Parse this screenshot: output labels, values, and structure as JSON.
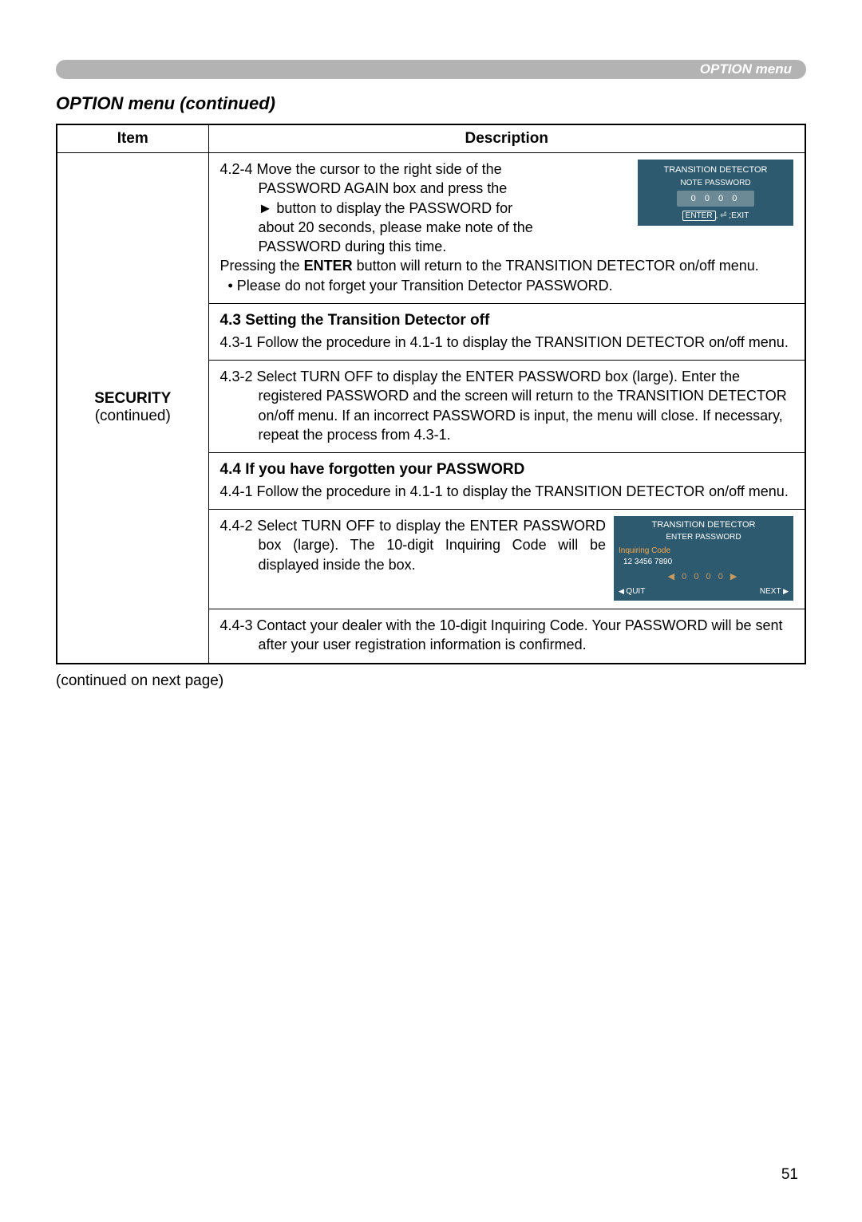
{
  "header_label": "OPTION menu",
  "page_title": "OPTION menu (continued)",
  "column_item": "Item",
  "column_desc": "Description",
  "item_name": "SECURITY",
  "item_sub": "(continued)",
  "s1": {
    "line1a": "4.2-4 Move the cursor to the right side of the",
    "line1b": "PASSWORD AGAIN box and press the",
    "line1c_pre": "► button to display the PASSWORD for",
    "line1d": "about 20 seconds, please make note of the",
    "line1e": "PASSWORD during this time.",
    "line2a": "Pressing the ",
    "line2b": "ENTER",
    "line2c": " button will return to the TRANSITION DETECTOR on/off menu.",
    "line3": "• Please do not forget your Transition Detector PASSWORD."
  },
  "s2": {
    "title": "4.3 Setting the Transition Detector off",
    "p1": "4.3-1 Follow the procedure in 4.1-1 to display the TRANSITION DETECTOR on/off menu."
  },
  "s3": {
    "p1": "4.3-2 Select TURN OFF to display the ENTER PASSWORD box (large). Enter the registered PASSWORD and the screen will return to the TRANSITION DETECTOR on/off menu. If an incorrect PASSWORD is input, the menu will close. If necessary, repeat the process from 4.3-1."
  },
  "s4": {
    "title": "4.4 If you have forgotten your PASSWORD",
    "p1": "4.4-1 Follow the procedure in 4.1-1 to display the TRANSITION DETECTOR on/off menu."
  },
  "s5": {
    "p1": "4.4-2 Select TURN OFF to display the ENTER PASSWORD box (large). The 10-digit Inquiring Code will be displayed inside the box."
  },
  "s6": {
    "p1": "4.4-3 Contact your dealer with the 10-digit Inquiring Code. Your PASSWORD will be sent after your user registration information is confirmed."
  },
  "continued_note": "(continued on next page)",
  "page_number": "51",
  "osd_small": {
    "title": "TRANSITION DETECTOR",
    "sub": "NOTE PASSWORD",
    "digits": "0 0 0 0",
    "footer_enter": "ENTER",
    "footer_mid": ", ⏎ ;",
    "footer_exit": "EXIT"
  },
  "osd_large": {
    "title1": "TRANSITION DETECTOR",
    "title2": "ENTER PASSWORD",
    "inq_label": "Inquiring Code",
    "inq_code": "12 3456 7890",
    "digits": "0 0 0 0",
    "quit": "QUIT",
    "next": "NEXT"
  },
  "colors": {
    "header_bg": "#b3b3b3",
    "header_text": "#ffffff",
    "osd_bg": "#2d5a6e",
    "osd_digit_bg": "#6b8a96",
    "osd_text": "#ffffff",
    "osd_inq_label": "#f5a84e",
    "osd_digits_amber": "#c99a5e",
    "border": "#000000",
    "page_bg": "#ffffff"
  }
}
